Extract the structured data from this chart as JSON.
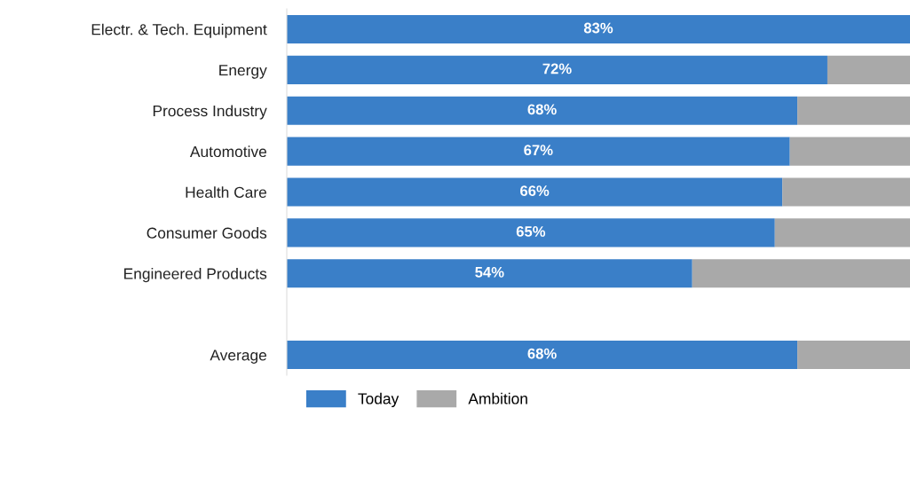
{
  "chart_data": {
    "type": "bar",
    "orientation": "horizontal",
    "stacked": true,
    "categories": [
      "Electr. & Tech. Equipment",
      "Energy",
      "Process Industry",
      "Automotive",
      "Health Care",
      "Consumer Goods",
      "Engineered Products",
      null,
      "Average"
    ],
    "series": [
      {
        "name": "Today",
        "color": "#3a7fc8",
        "values": [
          83,
          72,
          68,
          67,
          66,
          65,
          54,
          null,
          68
        ],
        "value_labels": [
          "83%",
          "72%",
          "68%",
          "67%",
          "66%",
          "65%",
          "54%",
          null,
          "68%"
        ]
      },
      {
        "name": "Ambition",
        "color": "#a9a9a9",
        "values": [
          0,
          11,
          15,
          16,
          17,
          18,
          29,
          null,
          15
        ]
      }
    ],
    "xlim": [
      0,
      83
    ],
    "tick_labels": "y",
    "grid": false,
    "legend": "bottom left"
  }
}
